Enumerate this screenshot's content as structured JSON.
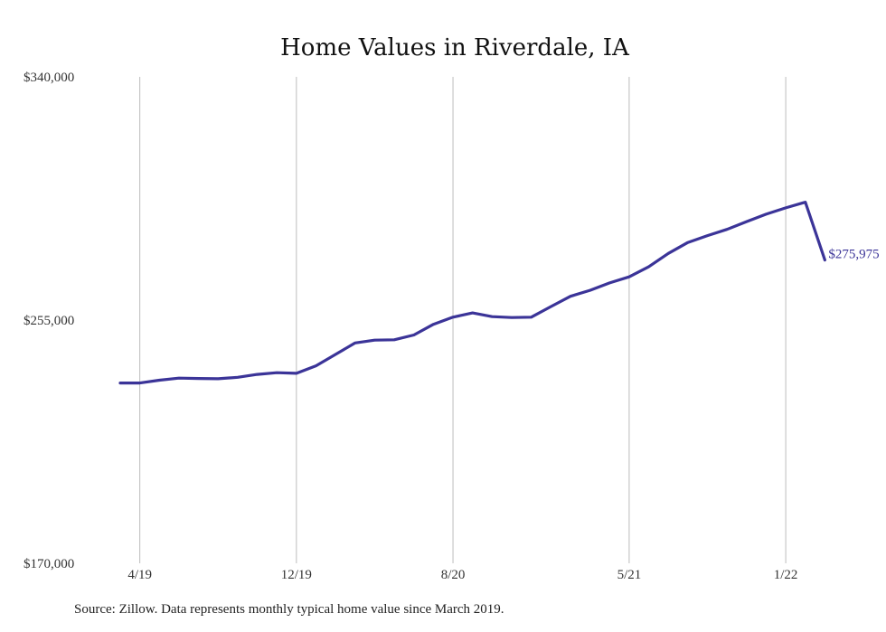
{
  "chart_data": {
    "type": "line",
    "title": "Home Values in Riverdale, IA",
    "xlabel": "",
    "ylabel": "",
    "ylim": [
      170000,
      340000
    ],
    "ytick_labels": [
      "$340,000",
      "$255,000",
      "$170,000"
    ],
    "yticks": [
      340000,
      255000,
      170000
    ],
    "xtick_labels": [
      "4/19",
      "12/19",
      "8/20",
      "5/21",
      "1/22"
    ],
    "x": [
      "3/19",
      "4/19",
      "5/19",
      "6/19",
      "7/19",
      "8/19",
      "9/19",
      "10/19",
      "11/19",
      "12/19",
      "1/20",
      "2/20",
      "3/20",
      "4/20",
      "5/20",
      "6/20",
      "7/20",
      "8/20",
      "9/20",
      "10/20",
      "11/20",
      "12/20",
      "1/21",
      "2/21",
      "3/21",
      "4/21",
      "5/21",
      "6/21",
      "7/21",
      "8/21",
      "9/21",
      "10/21",
      "11/21",
      "12/21",
      "1/22",
      "2/22",
      "3/22"
    ],
    "series": [
      {
        "values": [
          233000,
          233000,
          234000,
          234700,
          234600,
          234500,
          235000,
          236000,
          236600,
          236400,
          239000,
          243000,
          247000,
          248000,
          248100,
          249800,
          253500,
          256000,
          257500,
          256200,
          255900,
          256000,
          259700,
          263300,
          265400,
          268000,
          270100,
          273600,
          278300,
          282100,
          284500,
          286700,
          289400,
          292000,
          294200,
          296200,
          275975
        ],
        "color": "#3b3498"
      }
    ],
    "end_label": "$275,975",
    "grid": "vertical"
  },
  "footer": {
    "source": "Source: Zillow. Data represents monthly typical home value since March 2019."
  }
}
